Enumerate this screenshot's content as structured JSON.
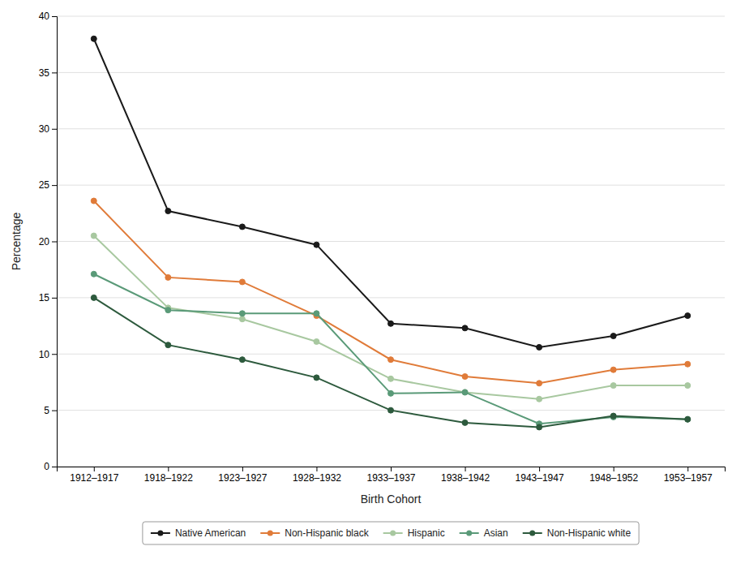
{
  "chart_data": {
    "type": "line",
    "categories": [
      "1912–1917",
      "1918–1922",
      "1923–1927",
      "1928–1932",
      "1933–1937",
      "1938–1942",
      "1943–1947",
      "1948–1952",
      "1953–1957"
    ],
    "series": [
      {
        "name": "Native American",
        "color": "#1a1a1a",
        "marker": "circle",
        "values": [
          38.0,
          22.7,
          21.3,
          19.7,
          12.7,
          12.3,
          10.6,
          11.6,
          13.4
        ]
      },
      {
        "name": "Non-Hispanic black",
        "color": "#e07b39",
        "marker": "circle",
        "values": [
          23.6,
          16.8,
          16.4,
          13.4,
          9.5,
          8.0,
          7.4,
          8.6,
          9.1
        ]
      },
      {
        "name": "Hispanic",
        "color": "#a8c8a0",
        "marker": "circle",
        "values": [
          20.5,
          14.1,
          13.1,
          11.1,
          7.8,
          6.6,
          6.0,
          7.2,
          7.2
        ]
      },
      {
        "name": "Asian",
        "color": "#5a9a78",
        "marker": "circle",
        "values": [
          17.1,
          13.9,
          13.6,
          13.6,
          6.5,
          6.6,
          3.8,
          4.4,
          4.2
        ]
      },
      {
        "name": "Non-Hispanic white",
        "color": "#2d5a3d",
        "marker": "circle",
        "values": [
          15.0,
          10.8,
          9.5,
          7.9,
          5.0,
          3.9,
          3.5,
          4.5,
          4.2
        ]
      }
    ],
    "x_label": "Birth Cohort",
    "y_label": "Percentage",
    "ylim": [
      0,
      40
    ],
    "yticks": [
      0,
      5,
      10,
      15,
      20,
      25,
      30,
      35,
      40
    ],
    "grid": true,
    "legend": "bottom"
  }
}
